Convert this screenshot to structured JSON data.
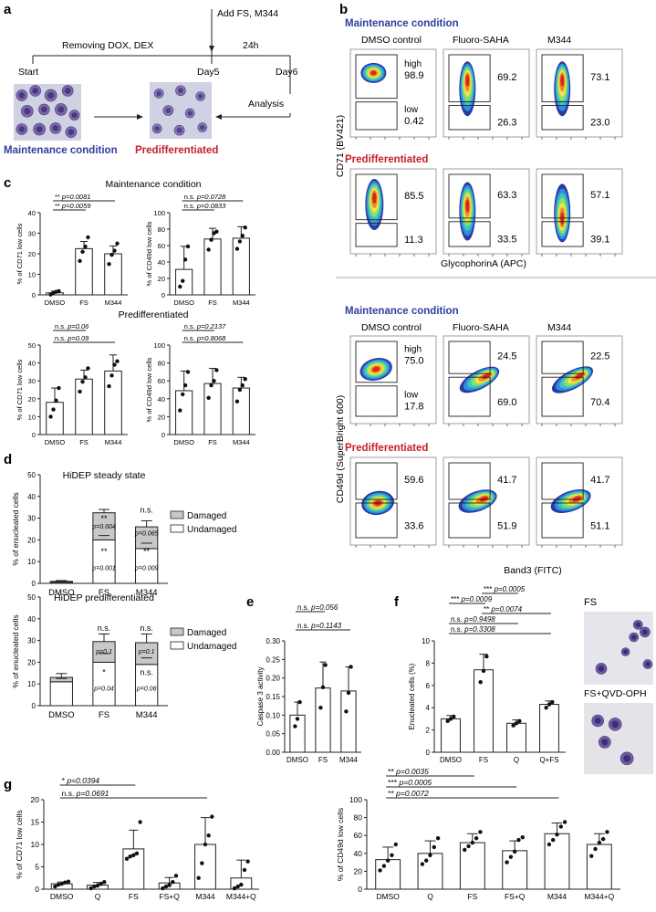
{
  "panels": {
    "a": "a",
    "b": "b",
    "c": "c",
    "d": "d",
    "e": "e",
    "f": "f",
    "g": "g"
  },
  "colors": {
    "blue": "#2e3f9e",
    "red": "#c3212e",
    "bar": "#ffffff",
    "damaged": "#c8c8c8",
    "axis": "#222222",
    "micro_bg": "#cdd1e1",
    "cell": "#7c6aa8"
  },
  "panel_a": {
    "add": "Add FS, M344",
    "removing": "Removing DOX, DEX",
    "h24": "24h",
    "start": "Start",
    "day5": "Day5",
    "day6": "Day6",
    "analysis": "Analysis",
    "maintenance": "Maintenance condition",
    "predifferentiated": "Predifferentiated"
  },
  "panel_b": {
    "maintenance": "Maintenance condition",
    "predifferentiated": "Predifferentiated",
    "columns": [
      "DMSO control",
      "Fluoro-SAHA",
      "M344"
    ],
    "y_label_top": "CD71 (BV421)",
    "x_label_top": "GlycophorinA (APC)",
    "y_label_bottom": "CD49d (SuperBright 600)",
    "x_label_bottom": "Band3 (FITC)",
    "high": "high",
    "low": "low",
    "cd71_maint": [
      [
        "98.9",
        "0.42"
      ],
      [
        "69.2",
        "26.3"
      ],
      [
        "73.1",
        "23.0"
      ]
    ],
    "cd71_pred": [
      [
        "85.5",
        "11.3"
      ],
      [
        "63.3",
        "33.5"
      ],
      [
        "57.1",
        "39.1"
      ]
    ],
    "cd49_maint": [
      [
        "75.0",
        "17.8"
      ],
      [
        "24.5",
        "69.0"
      ],
      [
        "22.5",
        "70.4"
      ]
    ],
    "cd49_pred": [
      [
        "59.6",
        "33.6"
      ],
      [
        "41.7",
        "51.9"
      ],
      [
        "41.7",
        "51.1"
      ]
    ]
  },
  "panel_c": {
    "maintenance": "Maintenance condition",
    "predifferentiated": "Predifferentiated"
  },
  "panel_d": {
    "legend_damaged": "Damaged",
    "legend_undamaged": "Undamaged"
  },
  "panel_f": {
    "micro_fs": "FS",
    "micro_fsq": "FS+QVD-OPH"
  },
  "chart_data": [
    {
      "id": "c1",
      "type": "bar",
      "title": "",
      "ylabel": "% of CD71 low cells",
      "categories": [
        "DMSO",
        "FS",
        "M344"
      ],
      "values": [
        1.0,
        22.5,
        20.0
      ],
      "errors": [
        0.8,
        3.5,
        3.8
      ],
      "ylim": [
        0,
        40
      ],
      "yticks": [
        0,
        10,
        20,
        30,
        40
      ],
      "points": [
        [
          0.2,
          1.0,
          1.5,
          1.8
        ],
        [
          16.5,
          21.0,
          23.5,
          28.0
        ],
        [
          15.0,
          19.5,
          21.5,
          25.0
        ]
      ],
      "brackets": [
        {
          "a": 0,
          "b": 1,
          "label": "** p=0.0059"
        },
        {
          "a": 0,
          "b": 2,
          "label": "** p=0.0081"
        }
      ]
    },
    {
      "id": "c2",
      "type": "bar",
      "title": "",
      "ylabel": "% of CD49d low cells",
      "categories": [
        "DMSO",
        "FS",
        "M344"
      ],
      "values": [
        31.0,
        68.0,
        69.0
      ],
      "errors": [
        28.0,
        13.0,
        14.0
      ],
      "ylim": [
        0,
        100
      ],
      "yticks": [
        0,
        20,
        40,
        60,
        80,
        100
      ],
      "points": [
        [
          10.0,
          17.0,
          43.0,
          59.0
        ],
        [
          55.0,
          67.0,
          75.0,
          77.0
        ],
        [
          56.0,
          65.0,
          72.0,
          82.0
        ]
      ],
      "brackets": [
        {
          "a": 0,
          "b": 1,
          "label": "n.s. p=0.0833"
        },
        {
          "a": 0,
          "b": 2,
          "label": "n.s. p=0.0728"
        }
      ]
    },
    {
      "id": "c3",
      "type": "bar",
      "title": "Predifferentiated",
      "ylabel": "% of CD71 low cells",
      "categories": [
        "DMSO",
        "FS",
        "M344"
      ],
      "values": [
        18.0,
        31.0,
        35.5
      ],
      "errors": [
        8.0,
        5.0,
        9.0
      ],
      "ylim": [
        0,
        50
      ],
      "yticks": [
        0,
        10,
        20,
        30,
        40,
        50
      ],
      "points": [
        [
          10.0,
          14.0,
          19.0,
          26.0
        ],
        [
          24.0,
          29.5,
          32.0,
          37.0
        ],
        [
          27.0,
          33.0,
          39.0,
          41.0
        ]
      ],
      "brackets": [
        {
          "a": 0,
          "b": 2,
          "label": "n.s. p=0.09"
        },
        {
          "a": 0,
          "b": 1,
          "label": "n.s. p=0.06"
        }
      ]
    },
    {
      "id": "c4",
      "type": "bar",
      "title": "",
      "ylabel": "% of CD49d low cells",
      "categories": [
        "DMSO",
        "FS",
        "M344"
      ],
      "values": [
        49.0,
        57.0,
        52.0
      ],
      "errors": [
        22.0,
        17.0,
        12.0
      ],
      "ylim": [
        0,
        100
      ],
      "yticks": [
        0,
        20,
        40,
        60,
        80,
        100
      ],
      "points": [
        [
          27.0,
          45.0,
          55.0,
          70.0
        ],
        [
          41.0,
          55.0,
          60.0,
          72.0
        ],
        [
          37.0,
          50.0,
          55.0,
          62.0
        ]
      ],
      "brackets": [
        {
          "a": 0,
          "b": 2,
          "label": "n.s. p=0.8068"
        },
        {
          "a": 0,
          "b": 1,
          "label": "n.s. p=0.2137"
        }
      ]
    },
    {
      "id": "d1",
      "type": "stacked-bar",
      "title": "HiDEP steady state",
      "ylabel": "% of enucleated cells",
      "categories": [
        "DMSO",
        "FS",
        "M344"
      ],
      "undamaged": [
        0.5,
        20.0,
        16.0
      ],
      "damaged": [
        0.4,
        12.5,
        10.0
      ],
      "total_err": [
        0.4,
        1.5,
        2.8
      ],
      "und_err": [
        0.3,
        2.0,
        2.5
      ],
      "ylim": [
        0,
        50
      ],
      "yticks": [
        0,
        10,
        20,
        30,
        40,
        50
      ],
      "annotations": [
        {
          "cat": 1,
          "value": 28.5,
          "lines": [
            "**",
            "p=0.004"
          ]
        },
        {
          "cat": 1,
          "value": 13.5,
          "lines": [
            "**"
          ]
        },
        {
          "cat": 1,
          "value": 6.0,
          "lines": [
            "p=0.001"
          ]
        },
        {
          "cat": 2,
          "value": 32.5,
          "lines": [
            "n.s."
          ]
        },
        {
          "cat": 2,
          "value": 22.0,
          "lines": [
            "p=0.065"
          ]
        },
        {
          "cat": 2,
          "value": 13.5,
          "lines": [
            "**"
          ]
        },
        {
          "cat": 2,
          "value": 6.0,
          "lines": [
            "p=0.009"
          ]
        }
      ]
    },
    {
      "id": "d2",
      "type": "stacked-bar",
      "title": "HiDEP predifferentiated",
      "ylabel": "% of enucleated cells",
      "categories": [
        "DMSO",
        "FS",
        "M344"
      ],
      "undamaged": [
        11.0,
        20.0,
        19.0
      ],
      "damaged": [
        2.0,
        9.5,
        10.0
      ],
      "total_err": [
        1.8,
        3.5,
        4.0
      ],
      "und_err": [
        1.5,
        4.0,
        3.0
      ],
      "ylim": [
        0,
        50
      ],
      "yticks": [
        0,
        10,
        20,
        30,
        40,
        50
      ],
      "annotations": [
        {
          "cat": 1,
          "value": 34.5,
          "lines": [
            "n.s."
          ]
        },
        {
          "cat": 1,
          "value": 24.0,
          "lines": [
            "p=0.1"
          ]
        },
        {
          "cat": 1,
          "value": 14.0,
          "lines": [
            "*"
          ]
        },
        {
          "cat": 1,
          "value": 7.0,
          "lines": [
            "p=0.04"
          ]
        },
        {
          "cat": 2,
          "value": 34.5,
          "lines": [
            "n.s."
          ]
        },
        {
          "cat": 2,
          "value": 24.0,
          "lines": [
            "p=0.1"
          ]
        },
        {
          "cat": 2,
          "value": 14.0,
          "lines": [
            "n.s."
          ]
        },
        {
          "cat": 2,
          "value": 7.0,
          "lines": [
            "p=0.06"
          ]
        }
      ]
    },
    {
      "id": "e",
      "type": "bar",
      "title": "",
      "ylabel": "Caspase 3 activity",
      "categories": [
        "DMSO",
        "FS",
        "M344"
      ],
      "values": [
        0.1,
        0.173,
        0.165
      ],
      "errors": [
        0.035,
        0.07,
        0.065
      ],
      "ylim": [
        0,
        0.3
      ],
      "yticks": [
        0.0,
        0.05,
        0.1,
        0.15,
        0.2,
        0.25,
        0.3
      ],
      "points": [
        [
          0.07,
          0.09,
          0.135
        ],
        [
          0.12,
          0.175,
          0.235
        ],
        [
          0.11,
          0.16,
          0.23
        ]
      ],
      "brackets": [
        {
          "a": 0,
          "b": 2,
          "label": "n.s. p=0.1143"
        },
        {
          "a": 0,
          "b": 1,
          "label": "n.s. p=0.056"
        }
      ]
    },
    {
      "id": "f",
      "type": "bar",
      "title": "",
      "ylabel": "Enucleated cells (%)",
      "categories": [
        "DMSO",
        "FS",
        "Q",
        "Q+FS"
      ],
      "values": [
        3.0,
        7.4,
        2.6,
        4.3
      ],
      "errors": [
        0.3,
        1.4,
        0.3,
        0.3
      ],
      "ylim": [
        0,
        10
      ],
      "yticks": [
        0,
        2,
        4,
        6,
        8,
        10
      ],
      "points": [
        [
          2.8,
          3.0,
          3.2
        ],
        [
          6.3,
          7.3,
          8.6
        ],
        [
          2.4,
          2.6,
          2.8
        ],
        [
          4.0,
          4.3,
          4.5
        ]
      ],
      "brackets": [
        {
          "a": 0,
          "b": 3,
          "label": "n.s. p=0.3308"
        },
        {
          "a": 0,
          "b": 2,
          "label": "n.s. p=0.9498"
        },
        {
          "a": 1,
          "b": 3,
          "label": "** p=0.0074"
        },
        {
          "a": 0,
          "b": 1,
          "label": "*** p=0.0009"
        },
        {
          "a": 1,
          "b": 2,
          "label": "*** p=0.0005"
        }
      ]
    },
    {
      "id": "g1",
      "type": "bar",
      "title": "",
      "ylabel": "% of CD71 low cells",
      "categories": [
        "DMSO",
        "Q",
        "FS",
        "FS+Q",
        "M344",
        "M344+Q"
      ],
      "values": [
        1.2,
        0.9,
        9.0,
        1.4,
        10.0,
        2.5
      ],
      "errors": [
        0.4,
        0.6,
        4.2,
        1.2,
        6.0,
        4.0
      ],
      "ylim": [
        0,
        20
      ],
      "yticks": [
        0,
        5,
        10,
        15,
        20
      ],
      "points": [
        [
          0.6,
          1.0,
          1.2,
          1.5,
          1.7
        ],
        [
          0.2,
          0.6,
          0.8,
          1.2,
          1.6
        ],
        [
          6.8,
          7.3,
          7.6,
          8.0,
          15.0
        ],
        [
          0.2,
          0.6,
          0.9,
          1.6,
          3.0
        ],
        [
          2.5,
          5.8,
          10.0,
          12.0,
          16.2
        ],
        [
          0.2,
          0.6,
          1.0,
          4.3,
          6.2
        ]
      ],
      "brackets": [
        {
          "a": 0,
          "b": 4,
          "label": "n.s. p=0.0691"
        },
        {
          "a": 0,
          "b": 2,
          "label": "* p=0.0394"
        }
      ]
    },
    {
      "id": "g2",
      "type": "bar",
      "title": "",
      "ylabel": "% of CD49d low cells",
      "categories": [
        "DMSO",
        "Q",
        "FS",
        "FS+Q",
        "M344",
        "M344+Q"
      ],
      "values": [
        33.0,
        40.0,
        52.0,
        43.0,
        62.0,
        50.0
      ],
      "errors": [
        14.0,
        14.0,
        10.0,
        11.0,
        12.0,
        12.0
      ],
      "ylim": [
        0,
        100
      ],
      "yticks": [
        0,
        20,
        40,
        60,
        80,
        100
      ],
      "points": [
        [
          21.0,
          26.0,
          32.0,
          38.0,
          50.0
        ],
        [
          28.0,
          32.0,
          38.0,
          47.0,
          57.0
        ],
        [
          44.0,
          48.0,
          52.0,
          57.0,
          64.0
        ],
        [
          30.0,
          36.0,
          42.0,
          55.0,
          58.0
        ],
        [
          50.0,
          55.0,
          61.0,
          70.0,
          75.0
        ],
        [
          37.0,
          45.0,
          52.0,
          56.0,
          64.0
        ]
      ],
      "brackets": [
        {
          "a": 0,
          "b": 4,
          "label": "** p=0.0072"
        },
        {
          "a": 0,
          "b": 3,
          "label": "*** p=0.0005"
        },
        {
          "a": 0,
          "b": 2,
          "label": "** p=0.0035"
        }
      ]
    }
  ]
}
